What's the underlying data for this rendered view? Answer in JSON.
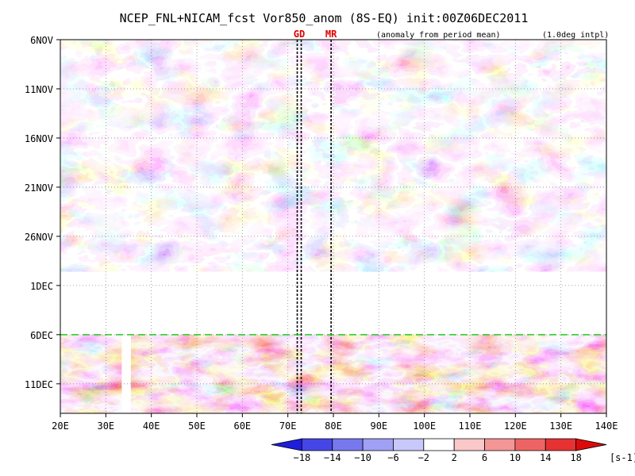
{
  "chart_data": {
    "type": "heatmap",
    "title": "NCEP_FNL+NICAM_fcst Vor850_anom (8S-EQ) init:00Z06DEC2011",
    "subtitle_left": "(anomaly from period mean)",
    "subtitle_right": "(1.0deg intpl)",
    "x_ticks": [
      {
        "value": 20,
        "label": "20E"
      },
      {
        "value": 30,
        "label": "30E"
      },
      {
        "value": 40,
        "label": "40E"
      },
      {
        "value": 50,
        "label": "50E"
      },
      {
        "value": 60,
        "label": "60E"
      },
      {
        "value": 70,
        "label": "70E"
      },
      {
        "value": 80,
        "label": "80E"
      },
      {
        "value": 90,
        "label": "90E"
      },
      {
        "value": 100,
        "label": "100E"
      },
      {
        "value": 110,
        "label": "110E"
      },
      {
        "value": 120,
        "label": "120E"
      },
      {
        "value": 130,
        "label": "130E"
      },
      {
        "value": 140,
        "label": "140E"
      }
    ],
    "xlim": [
      20,
      140
    ],
    "y_ticks": [
      {
        "value": 0,
        "label": "6NOV"
      },
      {
        "value": 5,
        "label": "11NOV"
      },
      {
        "value": 10,
        "label": "16NOV"
      },
      {
        "value": 15,
        "label": "21NOV"
      },
      {
        "value": 20,
        "label": "26NOV"
      },
      {
        "value": 25,
        "label": "1DEC"
      },
      {
        "value": 30,
        "label": "6DEC"
      },
      {
        "value": 35,
        "label": "11DEC"
      }
    ],
    "ylim": [
      0,
      38
    ],
    "data_gap_days": [
      23.6,
      30
    ],
    "forecast_start_day": 30,
    "missing_column_lon": [
      33.5,
      35.5
    ],
    "markers": [
      {
        "label": "GD",
        "lon": 72.5
      },
      {
        "label": "MR",
        "lon": 79.5
      }
    ],
    "colorbar": {
      "levels": [
        -18,
        -14,
        -10,
        -6,
        -2,
        2,
        6,
        10,
        14,
        18
      ],
      "level_labels": [
        "−18",
        "−14",
        "−10",
        "−6",
        "−2",
        "2",
        "6",
        "10",
        "14",
        "18"
      ],
      "colors": [
        "#1e1edc",
        "#4646e6",
        "#7878ee",
        "#a0a0f4",
        "#c8c8fa",
        "#ffffff",
        "#fac8c8",
        "#f49696",
        "#ee6464",
        "#e63232",
        "#dc0a0a"
      ],
      "unit": "[s-1]"
    },
    "grid": true
  }
}
